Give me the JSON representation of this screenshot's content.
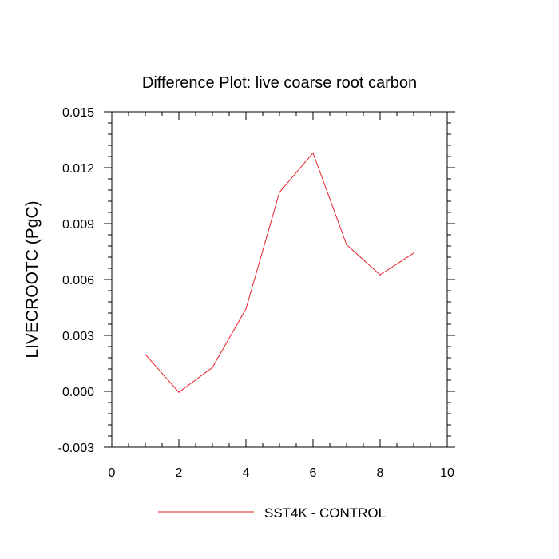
{
  "chart_data": {
    "type": "line",
    "title": "Difference Plot: live coarse root carbon",
    "xlabel": "",
    "ylabel": "LIVECROOTC  (PgC)",
    "xlim": [
      0,
      10
    ],
    "ylim": [
      -0.003,
      0.015
    ],
    "x_ticks": [
      0,
      2,
      4,
      6,
      8,
      10
    ],
    "x_tick_labels": [
      "0",
      "2",
      "4",
      "6",
      "8",
      "10"
    ],
    "x_minor_step": 0.5,
    "y_ticks": [
      -0.003,
      0,
      0.003,
      0.006,
      0.009,
      0.012,
      0.015
    ],
    "y_tick_labels": [
      "-0.003",
      "0.000",
      "0.003",
      "0.006",
      "0.009",
      "0.012",
      "0.015"
    ],
    "y_minor_step": 0.0006,
    "grid": false,
    "legend_position": "bottom",
    "series": [
      {
        "name": "SST4K - CONTROL",
        "color": "#e8202a",
        "x": [
          1,
          2,
          3,
          4,
          5,
          6,
          7,
          8,
          9
        ],
        "y": [
          0.00198,
          -5e-05,
          0.00128,
          0.00442,
          0.01068,
          0.01279,
          0.00787,
          0.00625,
          0.00742
        ]
      }
    ]
  }
}
